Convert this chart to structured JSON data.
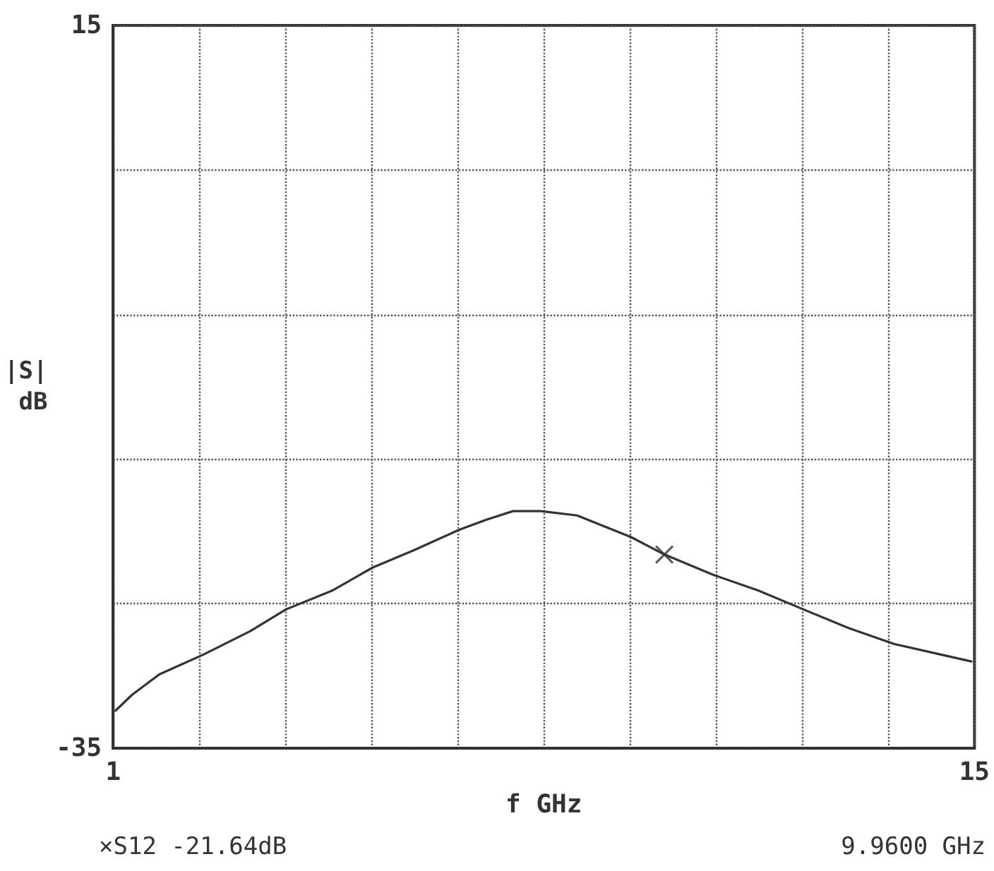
{
  "chart_data": {
    "type": "line",
    "xlabel": "f GHz",
    "ylabel": "|S|\ndB",
    "annotations": [
      "×S12 -21.64dB",
      "9.9600 GHz"
    ],
    "xlim": [
      1,
      15
    ],
    "xticks": [
      1,
      {
        "value": 2.4,
        "label": null
      },
      {
        "value": 3.8,
        "label": null
      },
      {
        "value": 5.2,
        "label": null
      },
      {
        "value": 6.6,
        "label": null
      },
      {
        "value": 8,
        "label": null
      },
      {
        "value": 9.4,
        "label": null
      },
      {
        "value": 10.8,
        "label": null
      },
      {
        "value": 12.2,
        "label": null
      },
      {
        "value": 13.6,
        "label": null
      },
      15
    ],
    "ylim": [
      -35,
      15
    ],
    "yticks": [
      -35,
      {
        "value": -25,
        "label": null
      },
      {
        "value": -15,
        "label": null
      },
      {
        "value": -5,
        "label": null
      },
      {
        "value": 5,
        "label": null
      },
      15
    ],
    "grid": true,
    "line_style": "solid",
    "series": [
      {
        "color": "#333333",
        "marker": "none",
        "x": [
          1.04,
          1.31,
          1.75,
          2.48,
          3.23,
          3.81,
          4.56,
          5.22,
          5.89,
          6.62,
          7.06,
          7.5,
          7.95,
          8.54,
          9.42,
          9.96,
          10.75,
          11.49,
          12.22,
          12.96,
          13.7,
          14.43,
          14.95
        ],
        "values": [
          -32.4,
          -31.3,
          -29.9,
          -28.5,
          -26.9,
          -25.4,
          -24.1,
          -22.5,
          -21.3,
          -19.9,
          -19.2,
          -18.6,
          -18.6,
          -18.9,
          -20.4,
          -21.6,
          -23.0,
          -24.1,
          -25.4,
          -26.7,
          -27.8,
          -28.5,
          -29.0
        ]
      },
      {
        "type": "scatter",
        "color": "#333333",
        "marker": "cross",
        "x": [
          9.96
        ],
        "values": [
          -21.6
        ]
      }
    ]
  }
}
